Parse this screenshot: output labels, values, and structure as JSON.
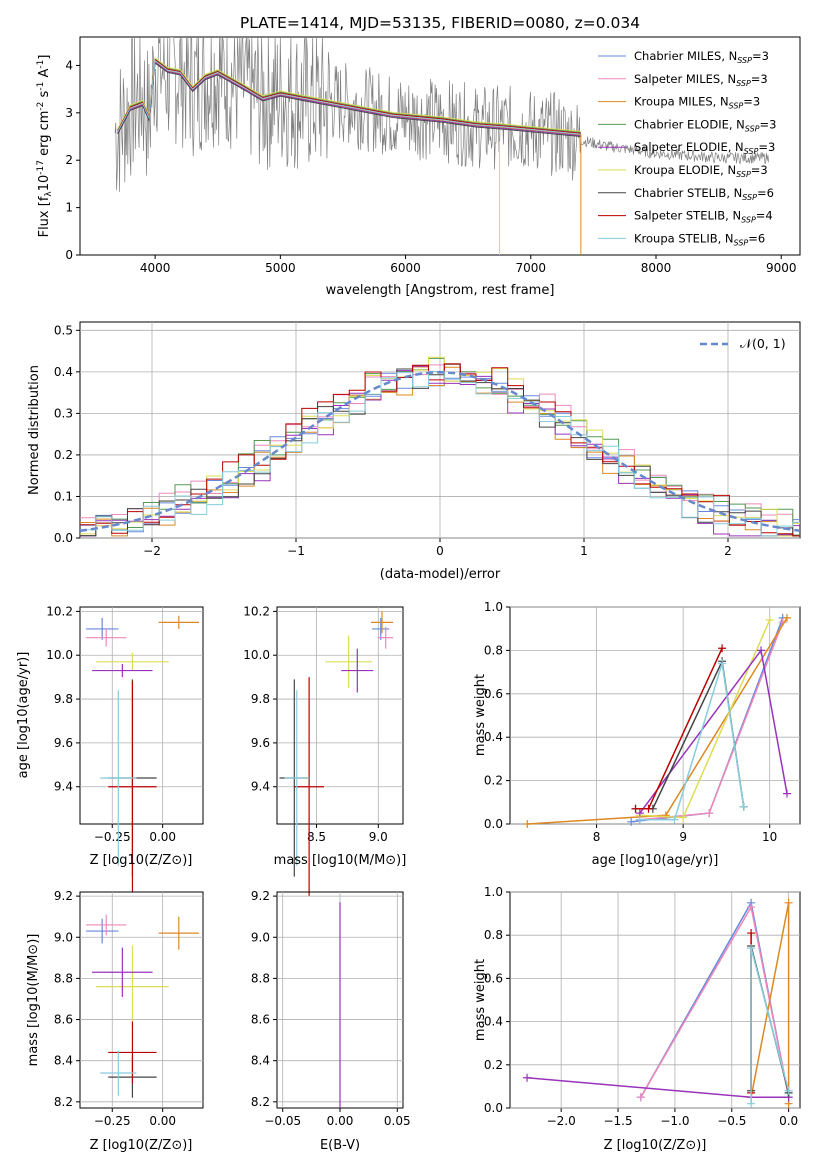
{
  "title": "PLATE=1414, MJD=53135, FIBERID=0080, z=0.034",
  "colors": {
    "observed": "#808080",
    "model_series": [
      "#6688dd",
      "#ee88bb",
      "#dd8822",
      "#559955",
      "#9933bb",
      "#dddd55",
      "#444444",
      "#bb0000",
      "#88ccdd"
    ],
    "normal_curve": "#6688cc"
  },
  "panels": {
    "spectrum": {
      "xlabel": "wavelength [Angstrom, rest frame]",
      "ylabel_parts": [
        "Flux [f",
        "λ",
        "10",
        "-17",
        " erg cm",
        "-2",
        " s",
        "-1",
        " A",
        "-1",
        "]"
      ],
      "legend": [
        {
          "name": "Chabrier MILES",
          "nssp": "3"
        },
        {
          "name": "Salpeter MILES",
          "nssp": "3"
        },
        {
          "name": "Kroupa MILES",
          "nssp": "3"
        },
        {
          "name": "Chabrier ELODIE",
          "nssp": "3"
        },
        {
          "name": "Salpeter ELODIE",
          "nssp": "3"
        },
        {
          "name": "Kroupa ELODIE",
          "nssp": "3"
        },
        {
          "name": "Chabrier STELIB",
          "nssp": "6"
        },
        {
          "name": "Salpeter STELIB",
          "nssp": "4"
        },
        {
          "name": "Kroupa STELIB",
          "nssp": "6"
        }
      ],
      "nssp_label": "N",
      "nssp_sub": "SSP"
    },
    "residuals": {
      "xlabel": "(data-model)/error",
      "ylabel": "Normed distribution",
      "legend": "𝒩(0, 1)"
    },
    "age_vs_Z": {
      "xlabel": "Z [log10(Z/Z⊙)]",
      "ylabel": "age [log10(age/yr)]"
    },
    "age_vs_mass": {
      "xlabel": "mass [log10(M/M⊙)]"
    },
    "weight_vs_age": {
      "xlabel": "age [log10(age/yr)]",
      "ylabel": "mass weight"
    },
    "mass_vs_Z": {
      "xlabel": "Z [log10(Z/Z⊙)]",
      "ylabel": "mass [log10(M/M⊙)]"
    },
    "mass_vs_ebv": {
      "xlabel": "E(B-V)"
    },
    "weight_vs_Z": {
      "xlabel": "Z [log10(Z/Z⊙)]",
      "ylabel": "mass weight"
    }
  },
  "chart_data": [
    {
      "type": "line",
      "title": "PLATE=1414, MJD=53135, FIBERID=0080, z=0.034",
      "xlabel": "wavelength [Angstrom, rest frame]",
      "ylabel": "Flux [fλ 10^-17 erg cm^-2 s^-1 A^-1]",
      "xlim": [
        3400,
        9150
      ],
      "ylim": [
        0,
        4.6
      ],
      "xticks": [
        4000,
        5000,
        6000,
        7000,
        8000,
        9000
      ],
      "yticks": [
        0,
        1,
        2,
        3,
        4
      ],
      "series": [
        {
          "name": "observed",
          "x": [
            3700,
            3800,
            3900,
            3950,
            4000,
            4100,
            4200,
            4300,
            4400,
            4500,
            4700,
            4860,
            5000,
            5200,
            5500,
            5900,
            6300,
            6560,
            6800,
            7200,
            7600,
            8000,
            8500,
            8900
          ],
          "y": [
            2.6,
            3.1,
            3.4,
            2.8,
            4.1,
            3.8,
            3.9,
            3.6,
            3.8,
            3.9,
            3.6,
            3.3,
            3.4,
            3.3,
            3.2,
            2.95,
            2.85,
            2.7,
            2.7,
            2.55,
            2.3,
            2.15,
            2.05,
            2.05
          ]
        },
        {
          "name": "model",
          "x": [
            3700,
            3800,
            3900,
            3950,
            4000,
            4100,
            4200,
            4300,
            4400,
            4500,
            4700,
            4860,
            5000,
            5200,
            5500,
            5900,
            6300,
            6560,
            6800,
            7200,
            7400
          ],
          "y": [
            2.6,
            3.1,
            3.2,
            2.9,
            4.1,
            3.9,
            3.85,
            3.5,
            3.75,
            3.85,
            3.55,
            3.3,
            3.4,
            3.3,
            3.15,
            2.95,
            2.85,
            2.75,
            2.7,
            2.6,
            2.55
          ]
        }
      ]
    },
    {
      "type": "line",
      "xlabel": "(data-model)/error",
      "ylabel": "Normed distribution",
      "xlim": [
        -2.5,
        2.5
      ],
      "ylim": [
        0,
        0.52
      ],
      "xticks": [
        -2,
        -1,
        0,
        1,
        2
      ],
      "yticks": [
        0.0,
        0.1,
        0.2,
        0.3,
        0.4,
        0.5
      ],
      "series": [
        {
          "name": "𝒩(0, 1)",
          "x": [
            -2.5,
            -2.0,
            -1.5,
            -1.0,
            -0.5,
            0,
            0.5,
            1.0,
            1.5,
            2.0,
            2.5
          ],
          "y": [
            0.018,
            0.054,
            0.13,
            0.242,
            0.352,
            0.399,
            0.352,
            0.242,
            0.13,
            0.054,
            0.018
          ]
        },
        {
          "name": "histogram",
          "x": [
            -2.4,
            -2.2,
            -2.0,
            -1.8,
            -1.6,
            -1.4,
            -1.2,
            -1.0,
            -0.8,
            -0.6,
            -0.4,
            -0.2,
            0.0,
            0.2,
            0.4,
            0.6,
            0.8,
            1.0,
            1.2,
            1.4,
            1.6,
            1.8,
            2.0,
            2.2,
            2.4
          ],
          "y": [
            0.03,
            0.04,
            0.05,
            0.09,
            0.12,
            0.16,
            0.21,
            0.26,
            0.3,
            0.33,
            0.37,
            0.4,
            0.32,
            0.42,
            0.37,
            0.35,
            0.31,
            0.27,
            0.22,
            0.17,
            0.13,
            0.09,
            0.06,
            0.05,
            0.04
          ]
        }
      ]
    },
    {
      "type": "scatter",
      "xlabel": "Z [log10(Z/Z⊙)]",
      "ylabel": "age [log10(age/yr)]",
      "xlim": [
        -0.41,
        0.2
      ],
      "ylim": [
        9.23,
        10.22
      ],
      "xticks": [
        -0.25,
        0.0
      ],
      "yticks": [
        9.4,
        9.6,
        9.8,
        10.0,
        10.2
      ],
      "series": [
        {
          "name": "Chabrier MILES",
          "x": [
            -0.3
          ],
          "y": [
            10.12
          ],
          "xerr": [
            0.08
          ],
          "yerr": [
            0.05
          ]
        },
        {
          "name": "Salpeter MILES",
          "x": [
            -0.28
          ],
          "y": [
            10.08
          ],
          "xerr": [
            0.1
          ],
          "yerr": [
            0.04
          ]
        },
        {
          "name": "Kroupa MILES",
          "x": [
            0.08
          ],
          "y": [
            10.15
          ],
          "xerr": [
            0.1
          ],
          "yerr": [
            0.03
          ]
        },
        {
          "name": "Kroupa ELODIE",
          "x": [
            -0.15
          ],
          "y": [
            9.97
          ],
          "xerr": [
            0.18
          ],
          "yerr": [
            0.04
          ]
        },
        {
          "name": "Salpeter ELODIE",
          "x": [
            -0.2
          ],
          "y": [
            9.93
          ],
          "xerr": [
            0.15
          ],
          "yerr": [
            0.03
          ]
        },
        {
          "name": "Chabrier STELIB",
          "x": [
            -0.15
          ],
          "y": [
            9.44
          ],
          "xerr": [
            0.12
          ],
          "yerr": [
            0.45
          ]
        },
        {
          "name": "Salpeter STELIB",
          "x": [
            -0.15
          ],
          "y": [
            9.4
          ],
          "xerr": [
            0.12
          ],
          "yerr": [
            0.48
          ]
        },
        {
          "name": "Kroupa STELIB",
          "x": [
            -0.22
          ],
          "y": [
            9.44
          ],
          "xerr": [
            0.09
          ],
          "yerr": [
            0.4
          ]
        }
      ]
    },
    {
      "type": "scatter",
      "xlabel": "mass [log10(M/M⊙)]",
      "xlim": [
        8.18,
        9.2
      ],
      "ylim": [
        9.23,
        10.22
      ],
      "xticks": [
        8.5,
        9.0
      ],
      "yticks": [
        9.4,
        9.6,
        9.8,
        10.0,
        10.2
      ],
      "series": [
        {
          "name": "Chabrier MILES",
          "x": [
            9.02
          ],
          "y": [
            10.12
          ],
          "xerr": [
            0.07
          ],
          "yerr": [
            0.05
          ]
        },
        {
          "name": "Salpeter MILES",
          "x": [
            9.06
          ],
          "y": [
            10.08
          ],
          "xerr": [
            0.06
          ],
          "yerr": [
            0.05
          ]
        },
        {
          "name": "Kroupa MILES",
          "x": [
            9.03
          ],
          "y": [
            10.15
          ],
          "xerr": [
            0.09
          ],
          "yerr": [
            0.05
          ]
        },
        {
          "name": "Kroupa ELODIE",
          "x": [
            8.76
          ],
          "y": [
            9.97
          ],
          "xerr": [
            0.19
          ],
          "yerr": [
            0.12
          ]
        },
        {
          "name": "Salpeter ELODIE",
          "x": [
            8.83
          ],
          "y": [
            9.93
          ],
          "xerr": [
            0.13
          ],
          "yerr": [
            0.1
          ]
        },
        {
          "name": "Chabrier STELIB",
          "x": [
            8.32
          ],
          "y": [
            9.44
          ],
          "xerr": [
            0.12
          ],
          "yerr": [
            0.45
          ]
        },
        {
          "name": "Salpeter STELIB",
          "x": [
            8.44
          ],
          "y": [
            9.4
          ],
          "xerr": [
            0.12
          ],
          "yerr": [
            0.5
          ]
        },
        {
          "name": "Kroupa STELIB",
          "x": [
            8.34
          ],
          "y": [
            9.44
          ],
          "xerr": [
            0.1
          ],
          "yerr": [
            0.4
          ]
        }
      ]
    },
    {
      "type": "line",
      "xlabel": "age [log10(age/yr)]",
      "ylabel": "mass weight",
      "xlim": [
        7.0,
        10.35
      ],
      "ylim": [
        0,
        1.0
      ],
      "xticks": [
        8,
        9,
        10
      ],
      "yticks": [
        0.0,
        0.2,
        0.4,
        0.6,
        0.8,
        1.0
      ],
      "series": [
        {
          "name": "Chabrier MILES",
          "x": [
            8.4,
            9.3,
            10.15
          ],
          "y": [
            0.01,
            0.05,
            0.95
          ]
        },
        {
          "name": "Salpeter MILES",
          "x": [
            8.5,
            9.3,
            10.15
          ],
          "y": [
            0.02,
            0.05,
            0.93
          ]
        },
        {
          "name": "Kroupa MILES",
          "x": [
            7.2,
            8.8,
            10.2
          ],
          "y": [
            0.0,
            0.04,
            0.95
          ]
        },
        {
          "name": "Kroupa ELODIE",
          "x": [
            8.5,
            9.0,
            10.0
          ],
          "y": [
            0.04,
            0.03,
            0.94
          ]
        },
        {
          "name": "Salpeter ELODIE",
          "x": [
            8.5,
            9.9,
            10.2
          ],
          "y": [
            0.05,
            0.8,
            0.14
          ]
        },
        {
          "name": "Chabrier STELIB",
          "x": [
            8.45,
            8.65,
            9.45,
            9.7
          ],
          "y": [
            0.07,
            0.07,
            0.75,
            0.08
          ]
        },
        {
          "name": "Salpeter STELIB",
          "x": [
            8.45,
            8.6,
            9.45
          ],
          "y": [
            0.07,
            0.07,
            0.81
          ]
        },
        {
          "name": "Kroupa STELIB",
          "x": [
            8.5,
            8.9,
            9.45,
            9.7
          ],
          "y": [
            0.02,
            0.02,
            0.74,
            0.08
          ]
        }
      ]
    },
    {
      "type": "scatter",
      "xlabel": "Z [log10(Z/Z⊙)]",
      "ylabel": "mass [log10(M/M⊙)]",
      "xlim": [
        -0.41,
        0.2
      ],
      "ylim": [
        8.17,
        9.22
      ],
      "xticks": [
        -0.25,
        0.0
      ],
      "yticks": [
        8.2,
        8.4,
        8.6,
        8.8,
        9.0,
        9.2
      ],
      "series": [
        {
          "name": "Chabrier MILES",
          "x": [
            -0.3
          ],
          "y": [
            9.03
          ],
          "xerr": [
            0.08
          ],
          "yerr": [
            0.06
          ]
        },
        {
          "name": "Salpeter MILES",
          "x": [
            -0.28
          ],
          "y": [
            9.06
          ],
          "xerr": [
            0.1
          ],
          "yerr": [
            0.05
          ]
        },
        {
          "name": "Kroupa MILES",
          "x": [
            0.08
          ],
          "y": [
            9.02
          ],
          "xerr": [
            0.1
          ],
          "yerr": [
            0.08
          ]
        },
        {
          "name": "Kroupa ELODIE",
          "x": [
            -0.15
          ],
          "y": [
            8.76
          ],
          "xerr": [
            0.18
          ],
          "yerr": [
            0.2
          ]
        },
        {
          "name": "Salpeter ELODIE",
          "x": [
            -0.2
          ],
          "y": [
            8.83
          ],
          "xerr": [
            0.15
          ],
          "yerr": [
            0.12
          ]
        },
        {
          "name": "Chabrier STELIB",
          "x": [
            -0.15
          ],
          "y": [
            8.32
          ],
          "xerr": [
            0.12
          ],
          "yerr": [
            0.1
          ]
        },
        {
          "name": "Salpeter STELIB",
          "x": [
            -0.15
          ],
          "y": [
            8.44
          ],
          "xerr": [
            0.12
          ],
          "yerr": [
            0.15
          ]
        },
        {
          "name": "Kroupa STELIB",
          "x": [
            -0.22
          ],
          "y": [
            8.34
          ],
          "xerr": [
            0.09
          ],
          "yerr": [
            0.11
          ]
        }
      ]
    },
    {
      "type": "scatter",
      "xlabel": "E(B-V)",
      "xlim": [
        -0.055,
        0.055
      ],
      "ylim": [
        8.17,
        9.22
      ],
      "xticks": [
        -0.05,
        0.0,
        0.05
      ],
      "yticks": [
        8.2,
        8.4,
        8.6,
        8.8,
        9.0,
        9.2
      ],
      "series": [
        {
          "name": "all fits",
          "x": [
            0.0
          ],
          "y": [
            8.67
          ],
          "yerr": [
            0.5
          ]
        }
      ]
    },
    {
      "type": "line",
      "xlabel": "Z [log10(Z/Z⊙)]",
      "ylabel": "mass weight",
      "xlim": [
        -2.45,
        0.1
      ],
      "ylim": [
        0,
        1.0
      ],
      "xticks": [
        -2.0,
        -1.5,
        -1.0,
        -0.5,
        0.0
      ],
      "yticks": [
        0.0,
        0.2,
        0.4,
        0.6,
        0.8,
        1.0
      ],
      "series": [
        {
          "name": "Chabrier MILES",
          "x": [
            -1.3,
            -0.33,
            0.0
          ],
          "y": [
            0.05,
            0.95,
            0.05
          ]
        },
        {
          "name": "Salpeter MILES",
          "x": [
            -1.3,
            -0.33,
            0.0
          ],
          "y": [
            0.05,
            0.93,
            0.05
          ]
        },
        {
          "name": "Kroupa MILES",
          "x": [
            -0.33,
            0.0,
            0.0
          ],
          "y": [
            0.05,
            0.95,
            0.02
          ]
        },
        {
          "name": "Salpeter ELODIE",
          "x": [
            -2.3,
            -0.33,
            0.0
          ],
          "y": [
            0.14,
            0.05,
            0.05
          ]
        },
        {
          "name": "Chabrier STELIB",
          "x": [
            -0.33,
            -0.33,
            0.0
          ],
          "y": [
            0.08,
            0.75,
            0.07
          ]
        },
        {
          "name": "Salpeter STELIB",
          "x": [
            -0.33,
            -0.33
          ],
          "y": [
            0.07,
            0.81
          ]
        },
        {
          "name": "Kroupa STELIB",
          "x": [
            -0.33,
            -0.33,
            0.0
          ],
          "y": [
            0.02,
            0.74,
            0.08
          ]
        }
      ]
    }
  ]
}
